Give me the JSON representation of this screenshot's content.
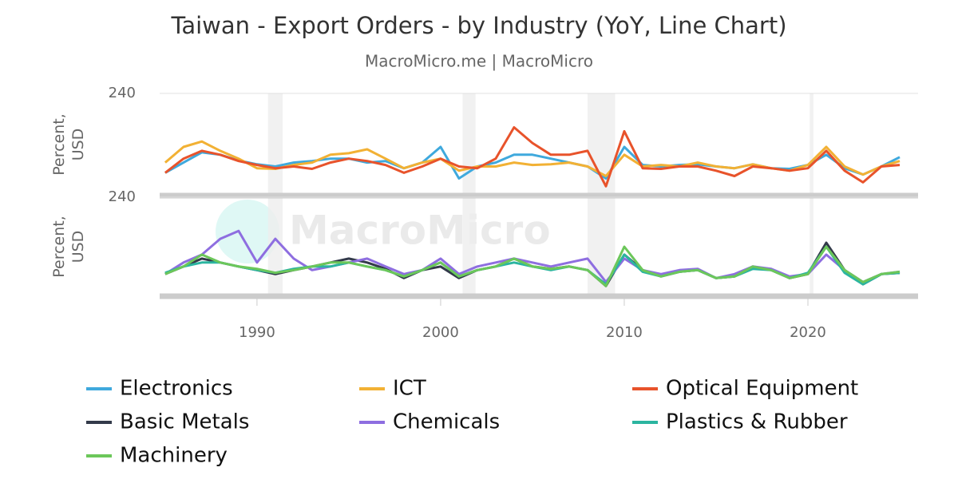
{
  "title": "Taiwan - Export Orders - by Industry (YoY, Line Chart)",
  "subtitle": "MacroMicro.me | MacroMicro",
  "watermark": "MacroMicro",
  "recessions": [
    [
      1990.6,
      1991.4
    ],
    [
      2001.2,
      2001.9
    ],
    [
      2008.0,
      2009.5
    ],
    [
      2020.1,
      2020.3
    ]
  ],
  "chart_data": [
    {
      "type": "line",
      "y_label": [
        "Percent,",
        "USD"
      ],
      "ylim": [
        -100,
        240
      ],
      "yticks": [
        240
      ],
      "xlim": [
        1984.7,
        2026
      ],
      "x": [
        1985,
        1986,
        1987,
        1988,
        1989,
        1990,
        1991,
        1992,
        1993,
        1994,
        1995,
        1996,
        1997,
        1998,
        1999,
        2000,
        2001,
        2002,
        2003,
        2004,
        2005,
        2006,
        2007,
        2008,
        2009,
        2010,
        2011,
        2012,
        2013,
        2014,
        2015,
        2016,
        2017,
        2018,
        2019,
        2020,
        2021,
        2022,
        2023,
        2024,
        2025
      ],
      "series": [
        {
          "name": "Electronics",
          "color": "#3fa9dd",
          "values": [
            -24,
            10,
            44,
            36,
            17,
            4,
            -3,
            10,
            15,
            23,
            23,
            10,
            15,
            -9,
            10,
            62,
            -43,
            -3,
            10,
            36,
            36,
            23,
            10,
            -3,
            -43,
            62,
            2,
            -3,
            2,
            4,
            -3,
            -9,
            4,
            -9,
            -11,
            2,
            36,
            -9,
            -30,
            -3,
            28
          ]
        },
        {
          "name": "ICT",
          "color": "#f2b134",
          "values": [
            10,
            62,
            80,
            49,
            23,
            -9,
            -11,
            2,
            10,
            36,
            41,
            54,
            23,
            -9,
            10,
            23,
            -17,
            -3,
            -3,
            10,
            2,
            4,
            10,
            -3,
            -35,
            36,
            -3,
            2,
            -3,
            10,
            -3,
            -9,
            4,
            -9,
            -17,
            2,
            62,
            -3,
            -30,
            -3,
            15
          ]
        },
        {
          "name": "Optical Equipment",
          "color": "#e8532b",
          "values": [
            -24,
            23,
            49,
            36,
            15,
            2,
            -9,
            -3,
            -11,
            10,
            23,
            15,
            2,
            -24,
            -3,
            23,
            -3,
            -9,
            23,
            127,
            75,
            36,
            36,
            49,
            -69,
            114,
            -9,
            -11,
            -3,
            -3,
            -17,
            -35,
            -3,
            -9,
            -17,
            -9,
            49,
            -17,
            -56,
            -3,
            2
          ]
        }
      ]
    },
    {
      "type": "line",
      "y_label": [
        "Percent,",
        "USD"
      ],
      "ylim": [
        -60,
        240
      ],
      "yticks": [
        240
      ],
      "xlim": [
        1984.7,
        2026
      ],
      "xticks": [
        1990,
        2000,
        2010,
        2020
      ],
      "x": [
        1985,
        1986,
        1987,
        1988,
        1989,
        1990,
        1991,
        1992,
        1993,
        1994,
        1995,
        1996,
        1997,
        1998,
        1999,
        2000,
        2001,
        2002,
        2003,
        2004,
        2005,
        2006,
        2007,
        2008,
        2009,
        2010,
        2011,
        2012,
        2013,
        2014,
        2015,
        2016,
        2017,
        2018,
        2019,
        2020,
        2021,
        2022,
        2023,
        2024,
        2025
      ],
      "series": [
        {
          "name": "Basic Metals",
          "color": "#333a4a",
          "values": [
            7,
            30,
            54,
            42,
            30,
            19,
            7,
            19,
            30,
            42,
            54,
            42,
            23,
            -5,
            19,
            30,
            -5,
            19,
            30,
            54,
            30,
            23,
            30,
            19,
            -29,
            66,
            19,
            0,
            14,
            19,
            -5,
            0,
            30,
            19,
            -5,
            7,
            102,
            19,
            -24,
            7,
            11
          ]
        },
        {
          "name": "Chemicals",
          "color": "#8e6ee0",
          "values": [
            7,
            42,
            66,
            114,
            138,
            42,
            114,
            54,
            19,
            30,
            42,
            54,
            30,
            7,
            19,
            54,
            7,
            30,
            42,
            54,
            42,
            30,
            42,
            54,
            -17,
            54,
            19,
            7,
            19,
            23,
            -5,
            7,
            30,
            23,
            0,
            7,
            66,
            19,
            -17,
            7,
            14
          ]
        },
        {
          "name": "Plastics & Rubber",
          "color": "#2bb5a0",
          "values": [
            11,
            30,
            42,
            42,
            30,
            19,
            11,
            23,
            30,
            30,
            42,
            30,
            19,
            0,
            19,
            42,
            0,
            19,
            30,
            42,
            30,
            19,
            30,
            19,
            -24,
            66,
            14,
            0,
            14,
            19,
            -5,
            0,
            23,
            19,
            -5,
            11,
            90,
            11,
            -24,
            7,
            11
          ]
        },
        {
          "name": "Machinery",
          "color": "#6cc75a",
          "values": [
            7,
            30,
            66,
            42,
            30,
            23,
            11,
            19,
            30,
            42,
            42,
            30,
            19,
            0,
            19,
            42,
            0,
            19,
            30,
            54,
            30,
            23,
            30,
            19,
            -29,
            90,
            19,
            0,
            14,
            19,
            -5,
            0,
            30,
            19,
            -5,
            7,
            90,
            19,
            -17,
            7,
            14
          ]
        }
      ]
    }
  ]
}
